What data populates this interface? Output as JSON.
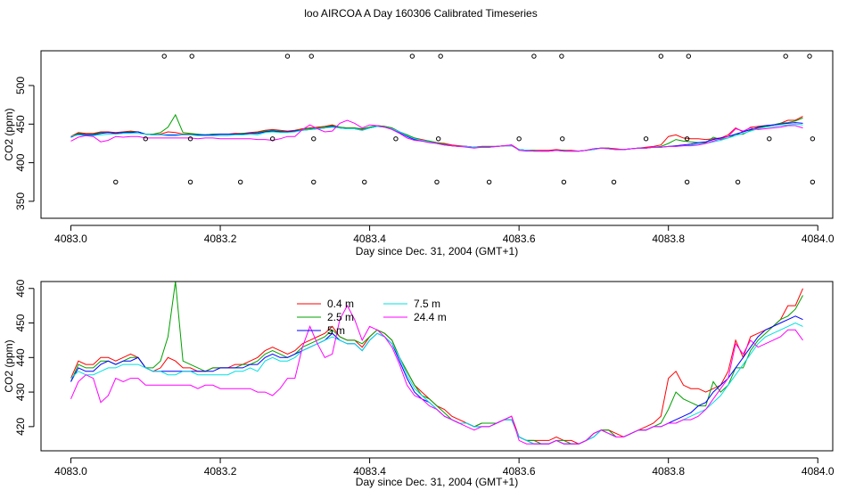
{
  "title": "loo AIRCOA A  Day 160306  Calibrated Timeseries",
  "chart_data": [
    {
      "type": "line",
      "xlabel": "Day since Dec. 31, 2004 (GMT+1)",
      "ylabel": "CO2 (ppm)",
      "xlim": [
        4082.96,
        4084.02
      ],
      "ylim": [
        328,
        545
      ],
      "xticks": [
        4083.0,
        4083.2,
        4083.4,
        4083.6,
        4083.8,
        4084.0
      ],
      "xtick_labels": [
        "4083.0",
        "4083.2",
        "4083.4",
        "4083.6",
        "4083.8",
        "4084.0"
      ],
      "yticks": [
        350,
        400,
        450,
        500
      ],
      "ytick_labels": [
        "350",
        "400",
        "450",
        "500"
      ],
      "marker_series": [
        {
          "y": 538,
          "x": [
            4083.125,
            4083.162,
            4083.29,
            4083.322,
            4083.457,
            4083.495,
            4083.62,
            4083.657,
            4083.79,
            4083.827,
            4083.957,
            4083.989
          ]
        },
        {
          "y": 431,
          "x": [
            4083.1,
            4083.16,
            4083.27,
            4083.325,
            4083.435,
            4083.492,
            4083.6,
            4083.658,
            4083.77,
            4083.825,
            4083.935,
            4083.993
          ]
        },
        {
          "y": 375,
          "x": [
            4083.06,
            4083.16,
            4083.227,
            4083.325,
            4083.393,
            4083.49,
            4083.56,
            4083.66,
            4083.727,
            4083.825,
            4083.893,
            4083.993
          ]
        }
      ]
    },
    {
      "type": "line",
      "xlabel": "Day since Dec. 31, 2004 (GMT+1)",
      "ylabel": "CO2 (ppm)",
      "xlim": [
        4082.96,
        4084.02
      ],
      "ylim": [
        413,
        462
      ],
      "xticks": [
        4083.0,
        4083.2,
        4083.4,
        4083.6,
        4083.8,
        4084.0
      ],
      "xtick_labels": [
        "4083.0",
        "4083.2",
        "4083.4",
        "4083.6",
        "4083.8",
        "4084.0"
      ],
      "yticks": [
        420,
        430,
        440,
        450,
        460
      ],
      "ytick_labels": [
        "420",
        "430",
        "440",
        "450",
        "460"
      ],
      "legend_position": "top-center",
      "x": [
        4083.0,
        4083.01,
        4083.02,
        4083.03,
        4083.04,
        4083.05,
        4083.06,
        4083.07,
        4083.08,
        4083.09,
        4083.1,
        4083.11,
        4083.12,
        4083.13,
        4083.14,
        4083.15,
        4083.16,
        4083.17,
        4083.18,
        4083.19,
        4083.2,
        4083.21,
        4083.22,
        4083.23,
        4083.24,
        4083.25,
        4083.26,
        4083.27,
        4083.28,
        4083.29,
        4083.3,
        4083.31,
        4083.32,
        4083.33,
        4083.34,
        4083.35,
        4083.36,
        4083.37,
        4083.38,
        4083.39,
        4083.4,
        4083.41,
        4083.42,
        4083.43,
        4083.44,
        4083.45,
        4083.46,
        4083.47,
        4083.48,
        4083.49,
        4083.5,
        4083.51,
        4083.52,
        4083.53,
        4083.54,
        4083.55,
        4083.56,
        4083.57,
        4083.58,
        4083.59,
        4083.6,
        4083.61,
        4083.62,
        4083.63,
        4083.64,
        4083.65,
        4083.66,
        4083.67,
        4083.68,
        4083.69,
        4083.7,
        4083.71,
        4083.72,
        4083.73,
        4083.74,
        4083.75,
        4083.76,
        4083.77,
        4083.78,
        4083.79,
        4083.8,
        4083.81,
        4083.82,
        4083.83,
        4083.84,
        4083.85,
        4083.86,
        4083.87,
        4083.88,
        4083.89,
        4083.9,
        4083.91,
        4083.92,
        4083.93,
        4083.94,
        4083.95,
        4083.96,
        4083.97,
        4083.98
      ],
      "series": [
        {
          "name": "0.4 m",
          "color": "#FF0000",
          "values": [
            434,
            439,
            438,
            438,
            440,
            440,
            439,
            440,
            441,
            440,
            437,
            436,
            437,
            440,
            439,
            437,
            437,
            436,
            436,
            437,
            437,
            437,
            438,
            438,
            439,
            440,
            442,
            443,
            442,
            441,
            442,
            444,
            445,
            446,
            447,
            449,
            446,
            445,
            445,
            443,
            446,
            448,
            447,
            445,
            440,
            436,
            432,
            430,
            428,
            426,
            425,
            423,
            422,
            421,
            420,
            421,
            421,
            421,
            422,
            423,
            417,
            416,
            416,
            416,
            416,
            417,
            416,
            416,
            415,
            416,
            418,
            419,
            419,
            418,
            417,
            418,
            419,
            420,
            421,
            423,
            434,
            436,
            432,
            431,
            431,
            430,
            431,
            432,
            436,
            445,
            440,
            446,
            447,
            448,
            449,
            451,
            455,
            455,
            460
          ]
        },
        {
          "name": "2.5 m",
          "color": "#00A000",
          "values": [
            433,
            438,
            437,
            437,
            439,
            439,
            438,
            439,
            440,
            440,
            437,
            437,
            439,
            446,
            462,
            439,
            438,
            437,
            436,
            437,
            437,
            437,
            437,
            438,
            438,
            439,
            441,
            442,
            441,
            440,
            441,
            443,
            444,
            445,
            446,
            448,
            446,
            445,
            445,
            444,
            446,
            448,
            447,
            445,
            440,
            436,
            432,
            429,
            428,
            426,
            424,
            422,
            421,
            421,
            420,
            421,
            421,
            421,
            422,
            422,
            417,
            416,
            416,
            415,
            415,
            416,
            416,
            415,
            415,
            416,
            418,
            419,
            419,
            417,
            417,
            418,
            419,
            419,
            420,
            421,
            425,
            430,
            428,
            427,
            426,
            426,
            433,
            430,
            432,
            437,
            437,
            442,
            445,
            447,
            449,
            451,
            452,
            454,
            458
          ]
        },
        {
          "name": "5 m",
          "color": "#0000FF",
          "values": [
            433,
            437,
            436,
            436,
            438,
            439,
            438,
            439,
            439,
            440,
            437,
            436,
            436,
            436,
            436,
            436,
            436,
            436,
            436,
            436,
            437,
            437,
            437,
            437,
            438,
            438,
            440,
            441,
            440,
            440,
            441,
            442,
            443,
            444,
            445,
            447,
            445,
            444,
            444,
            442,
            445,
            447,
            446,
            444,
            439,
            434,
            430,
            428,
            427,
            425,
            423,
            422,
            421,
            421,
            420,
            420,
            420,
            421,
            422,
            422,
            417,
            416,
            415,
            415,
            415,
            416,
            415,
            415,
            415,
            416,
            417,
            419,
            418,
            417,
            417,
            418,
            419,
            419,
            420,
            420,
            421,
            422,
            423,
            424,
            426,
            427,
            430,
            432,
            434,
            437,
            440,
            443,
            446,
            448,
            449,
            450,
            451,
            452,
            451
          ]
        },
        {
          "name": "7.5 m",
          "color": "#00E0E0",
          "values": [
            434,
            436,
            435,
            435,
            436,
            437,
            437,
            438,
            438,
            438,
            437,
            436,
            436,
            435,
            435,
            436,
            436,
            435,
            435,
            435,
            435,
            435,
            436,
            436,
            437,
            436,
            439,
            440,
            439,
            439,
            440,
            442,
            443,
            444,
            445,
            446,
            445,
            444,
            444,
            442,
            445,
            447,
            446,
            444,
            440,
            435,
            431,
            429,
            427,
            425,
            423,
            422,
            421,
            421,
            420,
            420,
            420,
            421,
            422,
            422,
            417,
            416,
            415,
            415,
            415,
            416,
            415,
            415,
            415,
            416,
            417,
            419,
            418,
            417,
            417,
            418,
            419,
            419,
            420,
            420,
            421,
            421,
            422,
            423,
            424,
            425,
            427,
            429,
            432,
            435,
            438,
            441,
            444,
            446,
            447,
            448,
            449,
            450,
            449
          ]
        },
        {
          "name": "24.4 m",
          "color": "#FF00FF",
          "values": [
            428,
            433,
            435,
            434,
            427,
            429,
            434,
            433,
            434,
            434,
            432,
            432,
            432,
            432,
            432,
            432,
            432,
            431,
            432,
            432,
            431,
            431,
            431,
            431,
            431,
            430,
            430,
            429,
            431,
            434,
            434,
            443,
            449,
            444,
            440,
            441,
            451,
            455,
            451,
            445,
            449,
            448,
            446,
            443,
            438,
            432,
            429,
            428,
            426,
            425,
            423,
            422,
            421,
            420,
            419,
            420,
            420,
            421,
            422,
            423,
            416,
            415,
            415,
            415,
            415,
            416,
            415,
            415,
            415,
            416,
            418,
            419,
            418,
            417,
            417,
            418,
            419,
            419,
            420,
            420,
            421,
            421,
            422,
            422,
            423,
            425,
            428,
            431,
            434,
            444,
            441,
            445,
            443,
            444,
            445,
            446,
            448,
            448,
            445
          ]
        }
      ]
    }
  ]
}
